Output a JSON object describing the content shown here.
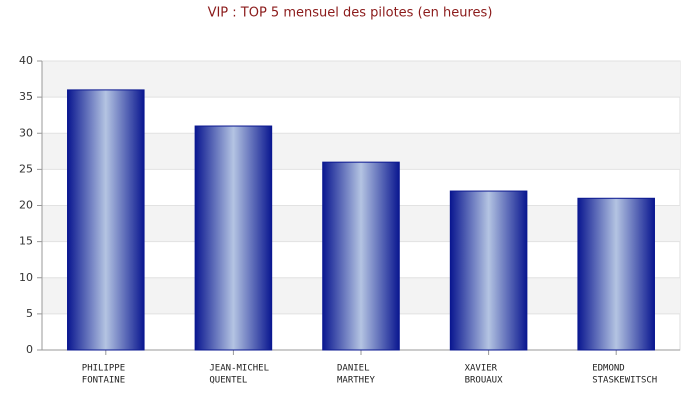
{
  "chart_data": {
    "type": "bar",
    "title": "VIP : TOP 5 mensuel des pilotes (en heures)",
    "categories": [
      [
        "PHILIPPE",
        "FONTAINE"
      ],
      [
        "JEAN-MICHEL",
        "QUENTEL"
      ],
      [
        "DANIEL",
        "MARTHEY"
      ],
      [
        "XAVIER",
        "BROUAUX"
      ],
      [
        "EDMOND",
        "STASKEWITSCH"
      ]
    ],
    "values": [
      36,
      31,
      26,
      22,
      21
    ],
    "color": "#0a1790",
    "ylim": [
      0,
      40
    ],
    "yticks": [
      0,
      5,
      10,
      15,
      20,
      25,
      30,
      35,
      40
    ],
    "grid": true
  }
}
